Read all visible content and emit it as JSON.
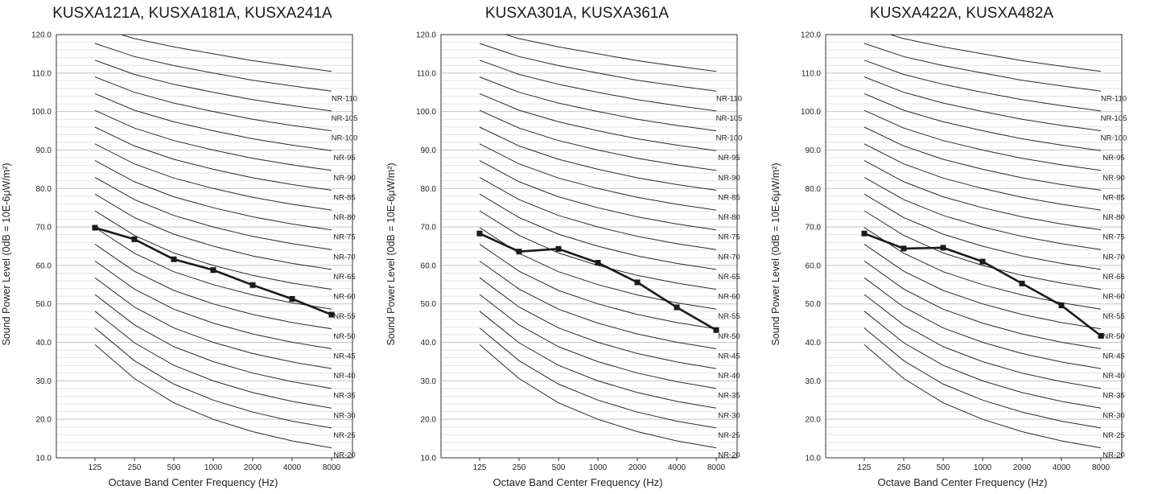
{
  "chart_data": [
    {
      "type": "line",
      "title": "KUSXA121A,  KUSXA181A, KUSXA241A",
      "xlabel": "Octave Band Center Frequency (Hz)",
      "ylabel": "Sound Power Level (0dB = 10E-6μW/m²)",
      "ylim": [
        10.0,
        120.0
      ],
      "yticks": [
        "10.0",
        "20.0",
        "30.0",
        "40.0",
        "50.0",
        "60.0",
        "70.0",
        "80.0",
        "90.0",
        "100.0",
        "110.0",
        "120.0"
      ],
      "categories": [
        "125",
        "250",
        "500",
        "1000",
        "2000",
        "4000",
        "8000"
      ],
      "nr_labels": [
        "NR-110",
        "NR-105",
        "NR-100",
        "NR-95",
        "NR-90",
        "NR-85",
        "NR-80",
        "NR-75",
        "NR-70",
        "NR-65",
        "NR-60",
        "NR-55",
        "NR-50",
        "NR-45",
        "NR-40",
        "NR-35",
        "NR-30",
        "NR-25",
        "NR-20"
      ],
      "series": [
        {
          "values": [
            69.8,
            66.8,
            61.6,
            58.8,
            54.9,
            51.3,
            47.2
          ]
        }
      ],
      "grid": true
    },
    {
      "type": "line",
      "title": "KUSXA301A, KUSXA361A",
      "xlabel": "Octave Band Center Frequency (Hz)",
      "ylabel": "Sound Power Level (0dB = 10E-6μW/m²)",
      "ylim": [
        10.0,
        120.0
      ],
      "yticks": [
        "10.0",
        "20.0",
        "30.0",
        "40.0",
        "50.0",
        "60.0",
        "70.0",
        "80.0",
        "90.0",
        "100.0",
        "110.0",
        "120.0"
      ],
      "categories": [
        "125",
        "250",
        "500",
        "1000",
        "2000",
        "4000",
        "8000"
      ],
      "nr_labels": [
        "NR-110",
        "NR-105",
        "NR-100",
        "NR-95",
        "NR-90",
        "NR-85",
        "NR-80",
        "NR-75",
        "NR-70",
        "NR-65",
        "NR-60",
        "NR-55",
        "NR-50",
        "NR-45",
        "NR-40",
        "NR-35",
        "NR-30",
        "NR-25",
        "NR-20"
      ],
      "series": [
        {
          "values": [
            68.3,
            63.6,
            64.3,
            60.7,
            55.6,
            49.1,
            43.2
          ]
        }
      ],
      "grid": true
    },
    {
      "type": "line",
      "title": "KUSXA422A, KUSXA482A",
      "xlabel": "Octave Band Center Frequency (Hz)",
      "ylabel": "Sound Power Level (0dB = 10E-6μW/m²)",
      "ylim": [
        10.0,
        120.0
      ],
      "yticks": [
        "10.0",
        "20.0",
        "30.0",
        "40.0",
        "50.0",
        "60.0",
        "70.0",
        "80.0",
        "90.0",
        "100.0",
        "110.0",
        "120.0"
      ],
      "categories": [
        "125",
        "250",
        "500",
        "1000",
        "2000",
        "4000",
        "8000"
      ],
      "nr_labels": [
        "NR-110",
        "NR-105",
        "NR-100",
        "NR-95",
        "NR-90",
        "NR-85",
        "NR-80",
        "NR-75",
        "NR-70",
        "NR-65",
        "NR-60",
        "NR-55",
        "NR-50",
        "NR-45",
        "NR-40",
        "NR-35",
        "NR-30",
        "NR-25",
        "NR-20"
      ],
      "series": [
        {
          "values": [
            68.3,
            64.4,
            64.6,
            61.0,
            55.3,
            49.6,
            41.7
          ]
        }
      ],
      "grid": true
    }
  ]
}
